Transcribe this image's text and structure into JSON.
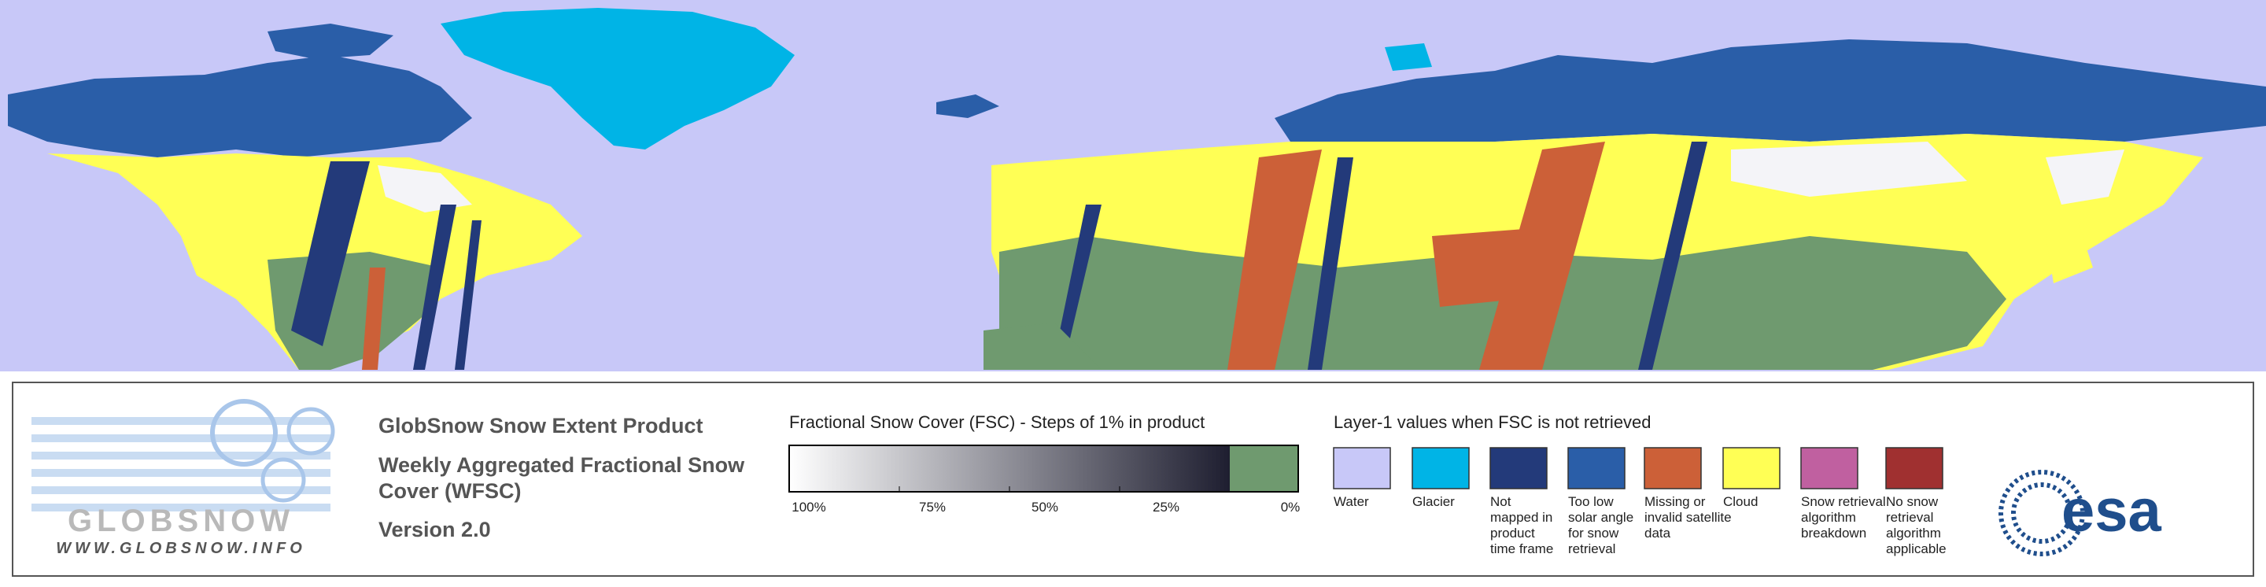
{
  "header": {
    "product": "GlobSnow Snow Extent Product",
    "title_lines": [
      "Weekly Aggregated Fractional Snow",
      "Cover (WFSC)"
    ],
    "version": "Version 2.0"
  },
  "logo": {
    "name": "GLOBSNOW",
    "url": "WWW.GLOBSNOW.INFO"
  },
  "fsc_scale": {
    "title": "Fractional Snow Cover (FSC) - Steps of 1% in product",
    "ticks": [
      "100%",
      "75%",
      "50%",
      "25%",
      "0%"
    ],
    "colors": {
      "start": "#ffffff",
      "end": "#1e1e30",
      "zero": "#6f9a6f"
    }
  },
  "layer1": {
    "title": "Layer-1 values when FSC is not retrieved",
    "items": [
      {
        "label": [
          "Water"
        ],
        "color": "#c8c8f8"
      },
      {
        "label": [
          "Glacier"
        ],
        "color": "#00b4e6"
      },
      {
        "label": [
          "Not",
          "mapped in",
          "product",
          "time frame"
        ],
        "color": "#233a7a"
      },
      {
        "label": [
          "Too low",
          "solar angle",
          "for snow",
          "retrieval"
        ],
        "color": "#2a5ea8"
      },
      {
        "label": [
          "Missing or",
          "invalid satellite",
          "data"
        ],
        "color": "#cc6038"
      },
      {
        "label": [
          "Cloud"
        ],
        "color": "#ffff55"
      },
      {
        "label": [
          "Snow retrieval",
          "algorithm",
          "breakdown"
        ],
        "color": "#c060a0"
      },
      {
        "label": [
          "No snow",
          "retrieval",
          "algorithm",
          "applicable"
        ],
        "color": "#a03030"
      }
    ]
  },
  "esa": "esa"
}
